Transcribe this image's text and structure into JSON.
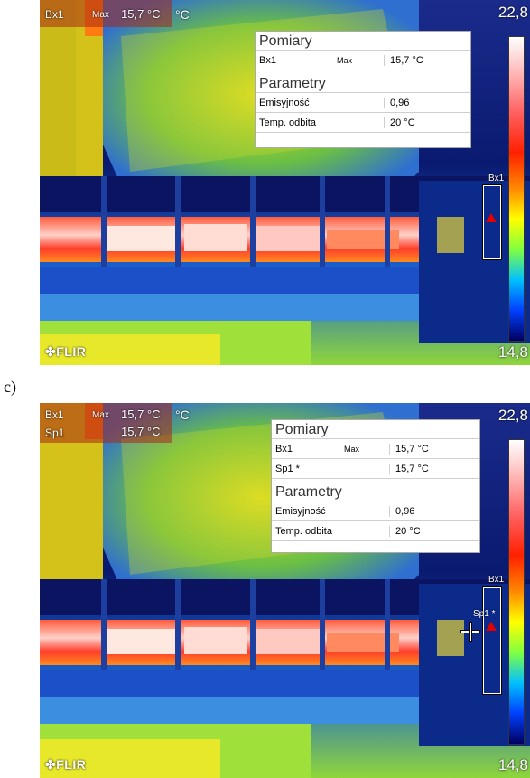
{
  "images": [
    {
      "overlay": {
        "rows": [
          {
            "label": "Bx1",
            "mode": "Max",
            "value": "15,7 °C",
            "unit": "°C"
          }
        ]
      },
      "scale": {
        "max": "22,8",
        "min": "14,8"
      },
      "logo": "FLIR",
      "roi": {
        "box_label": "Bx1",
        "spot_label": ""
      },
      "panel": {
        "measurements_title": "Pomiary",
        "measurements": [
          {
            "name": "Bx1",
            "mode": "Max",
            "value": "15,7 °C"
          }
        ],
        "params_title": "Parametry",
        "params": [
          {
            "name": "Emisyjność",
            "value": "0,96"
          },
          {
            "name": "Temp. odbita",
            "value": "20 °C"
          }
        ]
      }
    },
    {
      "overlay": {
        "rows": [
          {
            "label": "Bx1",
            "mode": "Max",
            "value": "15,7 °C",
            "unit": "°C"
          },
          {
            "label": "Sp1",
            "mode": "",
            "value": "15,7 °C",
            "unit": ""
          }
        ]
      },
      "scale": {
        "max": "22,8",
        "min": "14,8"
      },
      "logo": "FLIR",
      "roi": {
        "box_label": "Bx1",
        "spot_label": "Sp1 *"
      },
      "panel": {
        "measurements_title": "Pomiary",
        "measurements": [
          {
            "name": "Bx1",
            "mode": "Max",
            "value": "15,7 °C"
          },
          {
            "name": "Sp1 *",
            "mode": "",
            "value": "15,7 °C"
          }
        ],
        "params_title": "Parametry",
        "params": [
          {
            "name": "Emisyjność",
            "value": "0,96"
          },
          {
            "name": "Temp. odbita",
            "value": "20 °C"
          }
        ]
      }
    }
  ],
  "section_label": "c)"
}
